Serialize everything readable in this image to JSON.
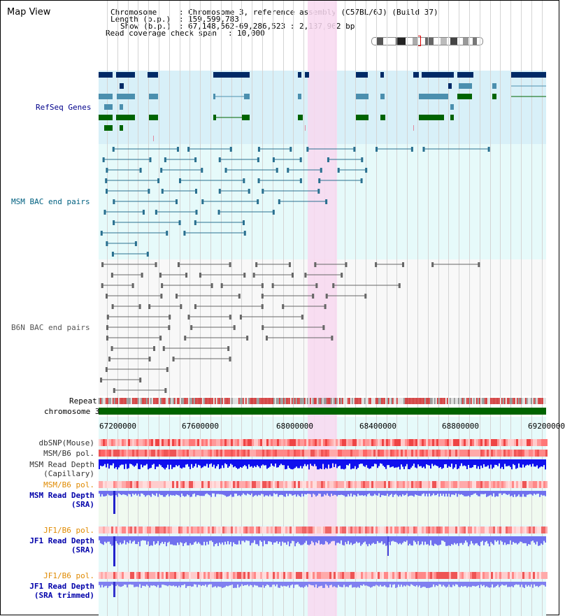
{
  "app": {
    "title": "Map View"
  },
  "info": {
    "chromosome_key": "Chromosome",
    "chromosome_value": "Chromosome 3, reference assembly (C57BL/6J) (Build 37)",
    "length_key": "Length (b.p.)",
    "length_value": "159,599,783",
    "show_key": "Show (b.p.)",
    "show_value": "67,148,562-69,286,523 : 2,137,962 bp",
    "span_key": "Read coverage check span",
    "span_value": "10,000"
  },
  "tracks": {
    "refseq": "RefSeq Genes",
    "msm_bac": "MSM BAC end pairs",
    "b6n_bac": "B6N BAC end pairs",
    "repeat": "Repeat",
    "chromosome": "chromosome 3",
    "dbsnp": "dbSNP(Mouse)",
    "msm_b6_pol_1": "MSM/B6 pol.",
    "msm_read_depth_1": "MSM Read Depth",
    "msm_read_depth_1_sub": "(Capillary)",
    "msm_b6_pol_2": "MSM/B6 pol.",
    "msm_read_depth_2": "MSM Read Depth",
    "msm_read_depth_2_sub": "(SRA)",
    "jf1_b6_pol_1": "JF1/B6 pol.",
    "jf1_read_depth_1": "JF1 Read Depth",
    "jf1_read_depth_1_sub": "(SRA)",
    "jf1_b6_pol_2": "JF1/B6 pol.",
    "jf1_read_depth_2": "JF1 Read Depth",
    "jf1_read_depth_2_sub": "(SRA trimmed)"
  },
  "axis": {
    "ticks": [
      "67200000",
      "67600000",
      "68000000",
      "68400000",
      "68800000",
      "69200000"
    ]
  },
  "colors": {
    "refseq_label": "#00008b",
    "msm_label": "#006080",
    "b6n_label": "#555555",
    "orange_label": "#e08a00",
    "blue_label": "#0000aa",
    "highlight": "#f8d8f0",
    "refseq_bg": "#d8f0f8",
    "msm_bg": "#e6fafa",
    "chromosome_bar": "#006400",
    "gene_navy": "#002a66",
    "gene_teal": "#4b8fae",
    "gene_green": "#006400",
    "read_depth_blue": "#1010ee",
    "read_depth_light": "#7070ee"
  }
}
